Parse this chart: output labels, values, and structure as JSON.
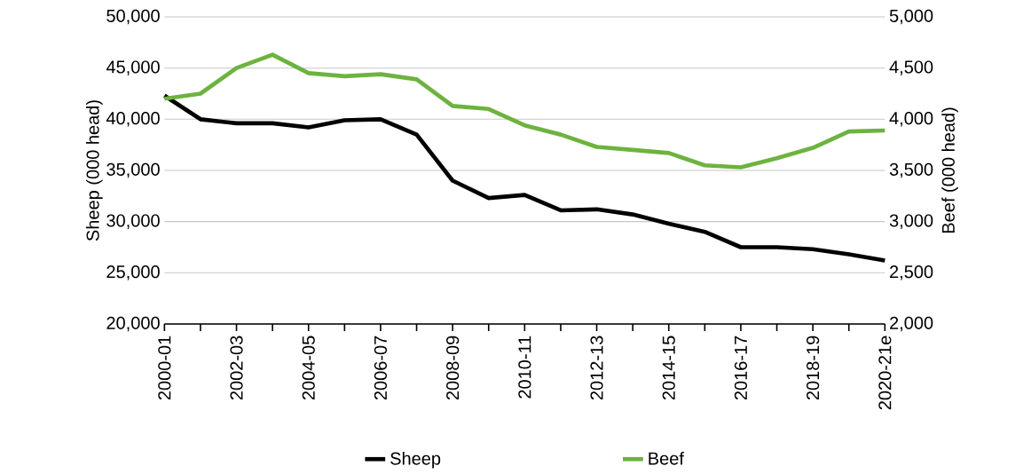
{
  "chart_data": {
    "type": "line",
    "categories": [
      "2000-01",
      null,
      "2002-03",
      null,
      "2004-05",
      null,
      "2006-07",
      null,
      "2008-09",
      null,
      "2010-11",
      null,
      "2012-13",
      null,
      "2014-15",
      null,
      "2016-17",
      null,
      "2018-19",
      null,
      "2020-21e"
    ],
    "series": [
      {
        "name": "Sheep",
        "color": "#000000",
        "values": [
          42300,
          40000,
          39600,
          39600,
          39200,
          39900,
          40000,
          38500,
          34000,
          32300,
          32600,
          31100,
          31200,
          30700,
          29800,
          29000,
          27500,
          27500,
          27300,
          26800,
          26200
        ]
      },
      {
        "name": "Beef",
        "color": "#6db33f",
        "axis": "y2",
        "values": [
          4200,
          4250,
          4500,
          4630,
          4450,
          4420,
          4440,
          4390,
          4130,
          4100,
          3940,
          3850,
          3730,
          3700,
          3670,
          3550,
          3530,
          3620,
          3720,
          3880,
          3890
        ]
      }
    ],
    "ylabel": "Sheep (000 head)",
    "y2label": "Beef (000 head)",
    "ylim": [
      20000,
      50000
    ],
    "yticks": [
      {
        "value": 20000,
        "label": "20,000"
      },
      {
        "value": 25000,
        "label": "25,000"
      },
      {
        "value": 30000,
        "label": "30,000"
      },
      {
        "value": 35000,
        "label": "35,000"
      },
      {
        "value": 40000,
        "label": "40,000"
      },
      {
        "value": 45000,
        "label": "45,000"
      },
      {
        "value": 50000,
        "label": "50,000"
      }
    ],
    "y2lim": [
      2000,
      5000
    ],
    "y2ticks": [
      {
        "value": 2000,
        "label": "2,000"
      },
      {
        "value": 2500,
        "label": "2,500"
      },
      {
        "value": 3000,
        "label": "3,000"
      },
      {
        "value": 3500,
        "label": "3,500"
      },
      {
        "value": 4000,
        "label": "4,000"
      },
      {
        "value": 4500,
        "label": "4,500"
      },
      {
        "value": 5000,
        "label": "5,000"
      }
    ],
    "grid": "y",
    "legend": "bottom"
  }
}
